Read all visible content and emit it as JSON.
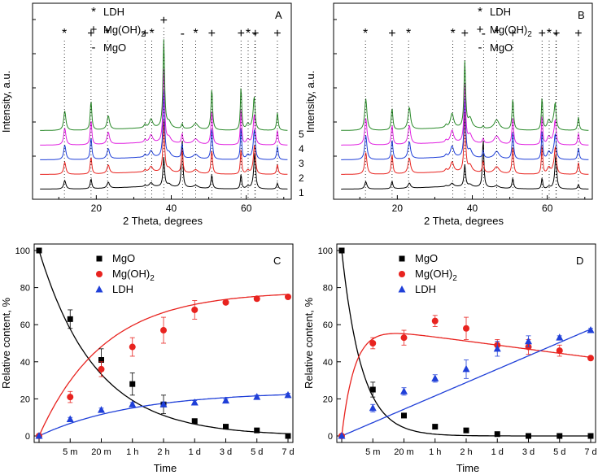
{
  "colors": {
    "black": "#000000",
    "red": "#e8231f",
    "blue": "#1f3fd8",
    "magenta": "#e020e0",
    "green": "#2a8a2a"
  },
  "chart_data": [
    {
      "id": "A",
      "type": "line",
      "panel_label": "A",
      "xlabel": "2 Theta, degrees",
      "ylabel": "Intensity, a.u.",
      "xlim": [
        3,
        72
      ],
      "xticks": [
        20,
        40,
        60
      ],
      "legend": [
        {
          "symbol": "*",
          "label": "LDH"
        },
        {
          "symbol": "+",
          "label": "Mg(OH)",
          "sub": "2"
        },
        {
          "symbol": "-",
          "label": "MgO"
        }
      ],
      "series": [
        {
          "name": "1",
          "color": "black",
          "offset": 0
        },
        {
          "name": "2",
          "color": "red",
          "offset": 1
        },
        {
          "name": "3",
          "color": "blue",
          "offset": 2
        },
        {
          "name": "4",
          "color": "magenta",
          "offset": 3
        },
        {
          "name": "5",
          "color": "green",
          "offset": 4
        }
      ],
      "peak_markers": [
        {
          "x": 11.5,
          "symbol": "*"
        },
        {
          "x": 18.6,
          "symbol": "+"
        },
        {
          "x": 23,
          "symbol": "*"
        },
        {
          "x": 33,
          "symbol": "+"
        },
        {
          "x": 34.8,
          "symbol": "*"
        },
        {
          "x": 38,
          "symbol": "+"
        },
        {
          "x": 43,
          "symbol": "-"
        },
        {
          "x": 46.5,
          "symbol": "*"
        },
        {
          "x": 50.8,
          "symbol": "+"
        },
        {
          "x": 58.6,
          "symbol": "+"
        },
        {
          "x": 60.5,
          "symbol": "*"
        },
        {
          "x": 62.3,
          "symbol": "-"
        },
        {
          "x": 62.4,
          "symbol": "+"
        },
        {
          "x": 68.3,
          "symbol": "+"
        }
      ]
    },
    {
      "id": "B",
      "type": "line",
      "panel_label": "B",
      "xlabel": "2 Theta, degrees",
      "ylabel": "Intensity, a.u.",
      "xlim": [
        3,
        72
      ],
      "xticks": [
        20,
        40,
        60
      ],
      "legend": [
        {
          "symbol": "*",
          "label": "LDH"
        },
        {
          "symbol": "+",
          "label": "Mg(OH)",
          "sub": "2"
        },
        {
          "symbol": "-",
          "label": "MgO"
        }
      ],
      "series": [
        {
          "name": "1",
          "color": "black",
          "offset": 0
        },
        {
          "name": "2",
          "color": "red",
          "offset": 1
        },
        {
          "name": "3",
          "color": "blue",
          "offset": 2
        },
        {
          "name": "4",
          "color": "magenta",
          "offset": 3
        },
        {
          "name": "5",
          "color": "green",
          "offset": 4
        }
      ],
      "peak_markers": [
        {
          "x": 11.5,
          "symbol": "*"
        },
        {
          "x": 18.6,
          "symbol": "+"
        },
        {
          "x": 23,
          "symbol": "*"
        },
        {
          "x": 34.8,
          "symbol": "*"
        },
        {
          "x": 38,
          "symbol": "+"
        },
        {
          "x": 43,
          "symbol": "-"
        },
        {
          "x": 46.5,
          "symbol": "*"
        },
        {
          "x": 50.8,
          "symbol": "+"
        },
        {
          "x": 58.6,
          "symbol": "+"
        },
        {
          "x": 60.5,
          "symbol": "*"
        },
        {
          "x": 62.3,
          "symbol": "-"
        },
        {
          "x": 62.4,
          "symbol": "+"
        },
        {
          "x": 68.3,
          "symbol": "+"
        }
      ]
    },
    {
      "id": "C",
      "type": "scatter",
      "panel_label": "C",
      "xlabel": "Time",
      "ylabel": "Relative content, %",
      "categories": [
        "",
        "5 m",
        "20 m",
        "1 h",
        "2 h",
        "1 d",
        "3 d",
        "5 d",
        "7 d"
      ],
      "ylim": [
        0,
        100
      ],
      "yticks": [
        0,
        20,
        40,
        60,
        80,
        100
      ],
      "series": [
        {
          "name": "MgO",
          "marker": "square",
          "color": "black",
          "values": [
            100,
            63,
            41,
            28,
            17,
            8,
            5,
            3,
            0
          ],
          "errors": [
            0,
            5,
            6,
            6,
            5,
            1,
            1,
            1,
            0
          ]
        },
        {
          "name": "Mg(OH)",
          "sub": "2",
          "marker": "circle",
          "color": "red",
          "values": [
            0,
            21,
            36,
            48,
            57,
            68,
            72,
            74,
            75
          ],
          "errors": [
            0,
            3,
            4,
            5,
            7,
            5,
            1,
            1,
            1
          ]
        },
        {
          "name": "LDH",
          "marker": "triangle",
          "color": "blue",
          "values": [
            0,
            9,
            14,
            17,
            17,
            18,
            19,
            21,
            22
          ],
          "errors": [
            0,
            1,
            1,
            1,
            1,
            1,
            1,
            1,
            1
          ]
        }
      ]
    },
    {
      "id": "D",
      "type": "scatter",
      "panel_label": "D",
      "xlabel": "Time",
      "ylabel": "Relative content, %",
      "categories": [
        "",
        "5 m",
        "20 m",
        "1 h",
        "2 h",
        "1 d",
        "3 d",
        "5 d",
        "7 d"
      ],
      "ylim": [
        0,
        100
      ],
      "yticks": [
        0,
        20,
        40,
        60,
        80,
        100
      ],
      "series": [
        {
          "name": "MgO",
          "marker": "square",
          "color": "black",
          "values": [
            100,
            25,
            11,
            5,
            3,
            1,
            0,
            0,
            0
          ],
          "errors": [
            0,
            4,
            1,
            1,
            0,
            0,
            0,
            0,
            0
          ]
        },
        {
          "name": "Mg(OH)",
          "sub": "2",
          "marker": "circle",
          "color": "red",
          "values": [
            0,
            50,
            53,
            62,
            58,
            49,
            48,
            46,
            42
          ],
          "errors": [
            0,
            3,
            4,
            3,
            6,
            3,
            4,
            3,
            1
          ]
        },
        {
          "name": "LDH",
          "marker": "triangle",
          "color": "blue",
          "values": [
            0,
            15,
            24,
            31,
            36,
            47,
            51,
            53,
            57
          ],
          "errors": [
            0,
            2,
            2,
            2,
            5,
            4,
            3,
            1,
            1
          ]
        }
      ]
    }
  ]
}
